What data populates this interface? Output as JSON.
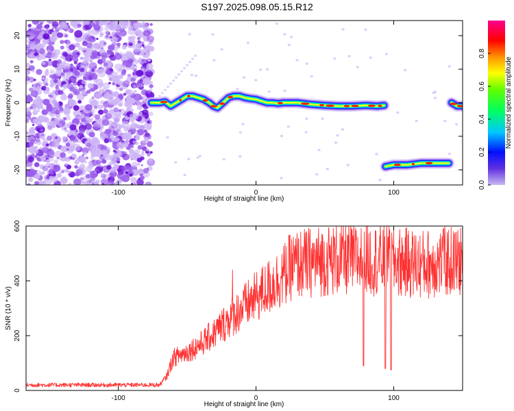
{
  "title": "S197.2025.098.05.15.R12",
  "colors": {
    "snr_line": "#ff3030",
    "noise_purple": "#7a22dd",
    "axis": "#000000"
  },
  "chart_data": [
    {
      "type": "heatmap",
      "name": "spectrogram",
      "xlabel": "Height of straight line (km)",
      "ylabel": "Frequency (Hz)",
      "xlim": [
        -167,
        150
      ],
      "ylim": [
        -24.5,
        24.5
      ],
      "xticks": [
        -100,
        0,
        100
      ],
      "yticks": [
        -20,
        -10,
        0,
        10,
        20
      ],
      "colorbar": {
        "label": "Normalized spectral amplitude",
        "lim": [
          0,
          1
        ],
        "ticks": [
          0.0,
          0.2,
          0.4,
          0.6,
          0.8
        ]
      },
      "noise_region_x": [
        -167,
        -76
      ],
      "ridges": [
        {
          "x": [
            -76,
            -70,
            -66,
            -62,
            -58,
            -54,
            -50,
            -46,
            -42,
            -38,
            -34,
            -31,
            -28,
            -24,
            -20,
            -16,
            -12,
            -8,
            -4,
            0,
            4,
            8,
            12,
            16,
            20,
            24,
            30,
            40,
            50,
            60,
            70,
            80,
            88,
            93
          ],
          "y": [
            0,
            0,
            0.3,
            -1,
            0,
            1,
            2,
            2,
            1.5,
            1,
            0,
            -1,
            -1.5,
            0,
            1.5,
            2,
            2,
            1.5,
            1.2,
            1,
            0.5,
            0,
            0,
            -0.2,
            0,
            0,
            0,
            -0.5,
            -0.8,
            -1,
            -1,
            -0.8,
            -1,
            -0.8
          ]
        },
        {
          "x": [
            94,
            100,
            110,
            120,
            130,
            140
          ],
          "y": [
            -19,
            -18.5,
            -18.5,
            -18,
            -18,
            -18
          ]
        },
        {
          "x": [
            142,
            146,
            150
          ],
          "y": [
            0,
            -1,
            -1
          ]
        }
      ]
    },
    {
      "type": "line",
      "name": "snr",
      "xlabel": "Height of straight line (km)",
      "ylabel": "SNR (10 * v/v)",
      "xlim": [
        -167,
        150
      ],
      "ylim": [
        0,
        600
      ],
      "xticks": [
        -100,
        0,
        100
      ],
      "yticks": [
        0,
        200,
        400,
        600
      ],
      "envelope": {
        "x": [
          -167,
          -80,
          -70,
          -65,
          -60,
          -50,
          -40,
          -30,
          -20,
          -10,
          0,
          10,
          15,
          20,
          25,
          30,
          50,
          80,
          100,
          120,
          140,
          150
        ],
        "y": [
          20,
          20,
          20,
          50,
          120,
          140,
          170,
          210,
          260,
          300,
          340,
          380,
          400,
          420,
          450,
          460,
          475,
          480,
          470,
          460,
          470,
          470
        ]
      },
      "dips": [
        {
          "x": 78,
          "y": 90
        },
        {
          "x": 94,
          "y": 80
        },
        {
          "x": 98,
          "y": 75
        }
      ],
      "spikes": [
        {
          "x": -17,
          "y": 440
        },
        {
          "x": 96,
          "y": 560
        },
        {
          "x": 136,
          "y": 590
        }
      ]
    }
  ]
}
